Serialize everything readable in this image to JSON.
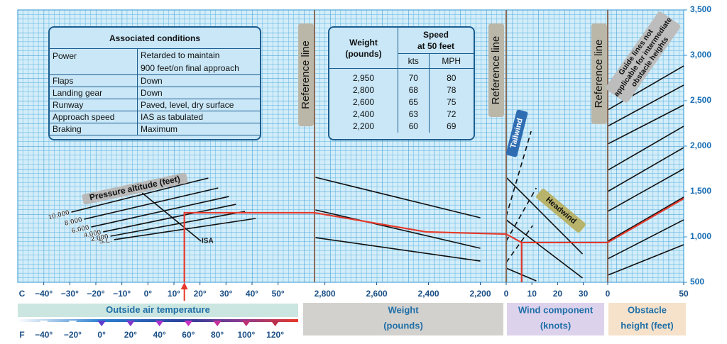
{
  "chart_data": {
    "type": "nomogram",
    "ylim": [
      500,
      3500
    ],
    "yticks": [
      500,
      {
        "value": 1000,
        "label": "1,000"
      },
      {
        "value": 1500,
        "label": "1,500"
      },
      {
        "value": 2000,
        "label": "2,000"
      },
      {
        "value": 2500,
        "label": "2,500"
      },
      {
        "value": 3000,
        "label": "3,000"
      },
      {
        "value": 3500,
        "label": "3,500"
      }
    ],
    "grid": true,
    "example_color": "#e5392b",
    "reference_lines": [
      "Reference line",
      "Reference line",
      "Reference line"
    ],
    "panels": [
      {
        "title": [
          "Outside air temperature"
        ],
        "unit_label": "C",
        "secondary_unit_label": "F",
        "xlim": [
          -50,
          64
        ],
        "xticks": [
          {
            "value": -40,
            "label": "−40°"
          },
          {
            "value": -30,
            "label": "−30°"
          },
          {
            "value": -20,
            "label": "−20°"
          },
          {
            "value": -10,
            "label": "−10°"
          },
          {
            "value": 0,
            "label": "0°"
          },
          {
            "value": 10,
            "label": "10°"
          },
          {
            "value": 20,
            "label": "20°"
          },
          {
            "value": 30,
            "label": "30°"
          },
          {
            "value": 40,
            "label": "40°"
          },
          {
            "value": 50,
            "label": "50°"
          }
        ],
        "secondary_xticks": [
          {
            "value": -40,
            "label": "−40°"
          },
          {
            "value": -20,
            "label": "−20°"
          },
          {
            "value": 0,
            "label": "0°"
          },
          {
            "value": 20,
            "label": "20°"
          },
          {
            "value": 40,
            "label": "40°"
          },
          {
            "value": 60,
            "label": "60°"
          },
          {
            "value": 80,
            "label": "80°"
          },
          {
            "value": 100,
            "label": "100°"
          },
          {
            "value": 120,
            "label": "120°"
          }
        ],
        "curve_title": "Pressure altitude (feet)",
        "isa_label": "ISA",
        "lines": [
          {
            "label": "10,000",
            "x": [
              -29.4,
              23.2
            ],
            "values": [
              1273,
              1648
            ]
          },
          {
            "label": "8,000",
            "x": [
              -24.5,
              27
            ],
            "values": [
              1195,
              1539
            ]
          },
          {
            "label": "6,000",
            "x": [
              -21.8,
              31.1
            ],
            "values": [
              1109,
              1445
            ]
          },
          {
            "label": "4,000",
            "x": [
              -17.2,
              33.8
            ],
            "values": [
              1055,
              1359
            ]
          },
          {
            "label": "2,000",
            "x": [
              -14.4,
              37.3
            ],
            "values": [
              1008,
              1281
            ]
          },
          {
            "label": "S.L.",
            "x": [
              -13,
              41.4
            ],
            "values": [
              969,
              1203
            ]
          },
          {
            "x": [
              -2.2,
              20.4
            ],
            "values": [
              1484,
              953
            ]
          }
        ],
        "example": [
          {
            "x": [
              14,
              14,
              64
            ],
            "values": [
              500,
              1266,
              1266
            ]
          }
        ]
      },
      {
        "title": [
          "Weight",
          "(pounds)"
        ],
        "xlim": [
          2840,
          2100
        ],
        "xticks": [
          {
            "value": 2800,
            "label": "2,800"
          },
          {
            "value": 2600,
            "label": "2,600"
          },
          {
            "value": 2400,
            "label": "2,400"
          },
          {
            "value": 2200,
            "label": "2,200"
          }
        ],
        "lines": [
          {
            "x": [
              2836,
              2200
            ],
            "values": [
              1656,
              1211
            ]
          },
          {
            "x": [
              2836,
              2200
            ],
            "values": [
              1297,
              875
            ]
          },
          {
            "x": [
              2836,
              2200
            ],
            "values": [
              992,
              734
            ]
          }
        ],
        "example": [
          {
            "x": [
              2840,
              2410,
              2100
            ],
            "values": [
              1266,
              1055,
              1031
            ]
          }
        ]
      },
      {
        "title": [
          "Wind component",
          "(knots)"
        ],
        "xlim": [
          0,
          39.5
        ],
        "xticks": [
          0,
          10,
          20,
          30
        ],
        "tailwind_label": "Tailwind",
        "headwind_label": "Headwind",
        "lines": [
          {
            "x": [
              0,
              29.7
            ],
            "values": [
              1656,
              812
            ]
          },
          {
            "x": [
              0,
              29.7
            ],
            "values": [
              1188,
              547
            ]
          },
          {
            "x": [
              0,
              11.7
            ],
            "values": [
              656,
              516
            ]
          },
          {
            "dashed": true,
            "x": [
              0,
              9.7
            ],
            "values": [
              1227,
              2164
            ]
          },
          {
            "dashed": true,
            "x": [
              0,
              11.7
            ],
            "values": [
              953,
              1539
            ]
          },
          {
            "dashed": true,
            "x": [
              0,
              10.3
            ],
            "values": [
              719,
              1125
            ]
          }
        ],
        "example": [
          {
            "x": [
              0,
              6,
              39.5
            ],
            "values": [
              1031,
              938,
              938
            ]
          },
          {
            "x": [
              6,
              6
            ],
            "values": [
              938,
              500
            ]
          }
        ]
      },
      {
        "title": [
          "Obstacle",
          "height (feet)"
        ],
        "xlim": [
          0,
          50
        ],
        "xticks": [
          0,
          50
        ],
        "note": [
          "Guide lines not",
          "applicable for intermediate",
          "obstacle heights"
        ],
        "lines": [
          {
            "x": [
              0,
              50
            ],
            "values": [
              578,
              914
            ]
          },
          {
            "x": [
              0,
              50
            ],
            "values": [
              758,
              1188
            ]
          },
          {
            "x": [
              0,
              50
            ],
            "values": [
              953,
              1438
            ]
          },
          {
            "x": [
              0,
              50
            ],
            "values": [
              1281,
              1750
            ]
          },
          {
            "x": [
              0,
              50
            ],
            "values": [
              1500,
              1984
            ]
          },
          {
            "x": [
              0,
              50
            ],
            "values": [
              1734,
              2219
            ]
          },
          {
            "x": [
              0,
              50
            ],
            "values": [
              2023,
              2453
            ]
          },
          {
            "x": [
              0,
              50
            ],
            "values": [
              2219,
              2672
            ]
          },
          {
            "x": [
              0,
              50
            ],
            "values": [
              2398,
              2883
            ]
          }
        ],
        "example": [
          {
            "x": [
              0,
              50
            ],
            "values": [
              938,
              1422
            ]
          }
        ]
      }
    ],
    "conditions_table": {
      "title": "Associated conditions",
      "rows": [
        [
          "Power",
          [
            "Retarded to maintain",
            "900 feet/on final approach"
          ]
        ],
        [
          "Flaps",
          "Down"
        ],
        [
          "Landing gear",
          "Down"
        ],
        [
          "Runway",
          "Paved, level, dry surface"
        ],
        [
          "Approach speed",
          "IAS as tabulated"
        ],
        [
          "Braking",
          "Maximum"
        ]
      ]
    },
    "speed_table": {
      "weight_header": [
        "Weight",
        "(pounds)"
      ],
      "speed_header": [
        "Speed",
        "at 50 feet"
      ],
      "sub_headers": [
        "kts",
        "MPH"
      ],
      "rows": [
        [
          "2,950",
          70,
          80
        ],
        [
          "2,800",
          68,
          78
        ],
        [
          "2,600",
          65,
          75
        ],
        [
          "2,400",
          63,
          72
        ],
        [
          "2,200",
          60,
          69
        ]
      ]
    }
  }
}
